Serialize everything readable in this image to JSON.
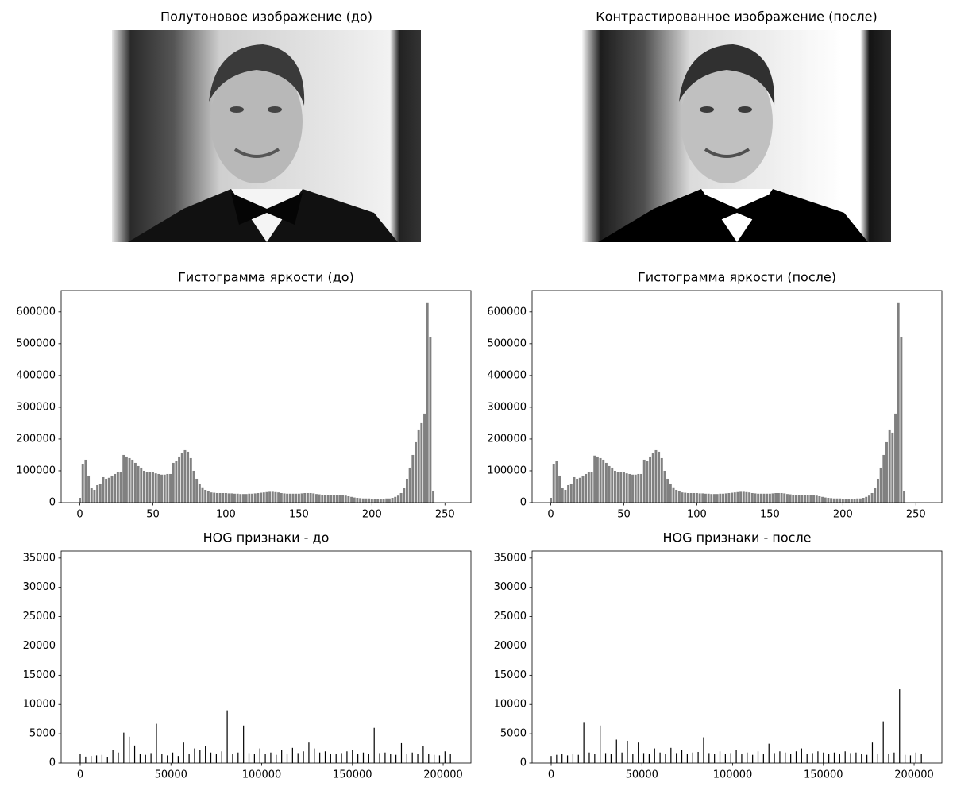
{
  "chart_data": [
    {
      "type": "image",
      "title": "Полутоновое изображение (до)"
    },
    {
      "type": "image",
      "title": "Контрастированное изображение (после)"
    },
    {
      "type": "bar",
      "title": "Гистограмма яркости (до)",
      "color": "#808080",
      "x": [
        0,
        2,
        4,
        6,
        8,
        10,
        12,
        14,
        16,
        18,
        20,
        22,
        24,
        26,
        28,
        30,
        32,
        34,
        36,
        38,
        40,
        42,
        44,
        46,
        48,
        50,
        52,
        54,
        56,
        58,
        60,
        62,
        64,
        66,
        68,
        70,
        72,
        74,
        76,
        78,
        80,
        82,
        84,
        86,
        88,
        90,
        92,
        94,
        96,
        98,
        100,
        102,
        104,
        106,
        108,
        110,
        112,
        114,
        116,
        118,
        120,
        122,
        124,
        126,
        128,
        130,
        132,
        134,
        136,
        138,
        140,
        142,
        144,
        146,
        148,
        150,
        152,
        154,
        156,
        158,
        160,
        162,
        164,
        166,
        168,
        170,
        172,
        174,
        176,
        178,
        180,
        182,
        184,
        186,
        188,
        190,
        192,
        194,
        196,
        198,
        200,
        202,
        204,
        206,
        208,
        210,
        212,
        214,
        216,
        218,
        220,
        222,
        224,
        226,
        228,
        230,
        232,
        234,
        236,
        238,
        240,
        242
      ],
      "values": [
        15000,
        120000,
        135000,
        85000,
        45000,
        40000,
        55000,
        60000,
        80000,
        75000,
        78000,
        85000,
        90000,
        95000,
        95000,
        150000,
        145000,
        140000,
        135000,
        125000,
        115000,
        110000,
        100000,
        95000,
        95000,
        95000,
        92000,
        90000,
        88000,
        88000,
        90000,
        90000,
        125000,
        130000,
        145000,
        155000,
        165000,
        160000,
        140000,
        100000,
        75000,
        60000,
        48000,
        40000,
        35000,
        32000,
        31000,
        30000,
        30000,
        30000,
        30000,
        29000,
        29000,
        28000,
        28000,
        27000,
        27000,
        27000,
        28000,
        28000,
        29000,
        30000,
        31000,
        32000,
        33000,
        34000,
        34000,
        33000,
        32000,
        30000,
        29000,
        28000,
        28000,
        28000,
        28000,
        28000,
        29000,
        30000,
        30000,
        30000,
        29000,
        27000,
        26000,
        25000,
        24000,
        24000,
        24000,
        23000,
        23000,
        24000,
        23000,
        22000,
        20000,
        18000,
        16000,
        15000,
        14000,
        13000,
        13000,
        13000,
        12000,
        12000,
        12000,
        12000,
        12000,
        13000,
        13000,
        15000,
        18000,
        22000,
        30000,
        45000,
        75000,
        110000,
        150000,
        190000,
        230000,
        250000,
        280000,
        630000,
        520000,
        35000
      ],
      "xlim": [
        -12.8,
        267.8
      ],
      "xticks": [
        0,
        50,
        100,
        150,
        200,
        250
      ],
      "ylim": [
        0,
        667000
      ],
      "yticks": [
        0,
        100000,
        200000,
        300000,
        400000,
        500000,
        600000
      ]
    },
    {
      "type": "bar",
      "title": "Гистограмма яркости (после)",
      "color": "#808080",
      "x": [
        0,
        2,
        4,
        6,
        8,
        10,
        12,
        14,
        16,
        18,
        20,
        22,
        24,
        26,
        28,
        30,
        32,
        34,
        36,
        38,
        40,
        42,
        44,
        46,
        48,
        50,
        52,
        54,
        56,
        58,
        60,
        62,
        64,
        66,
        68,
        70,
        72,
        74,
        76,
        78,
        80,
        82,
        84,
        86,
        88,
        90,
        92,
        94,
        96,
        98,
        100,
        102,
        104,
        106,
        108,
        110,
        112,
        114,
        116,
        118,
        120,
        122,
        124,
        126,
        128,
        130,
        132,
        134,
        136,
        138,
        140,
        142,
        144,
        146,
        148,
        150,
        152,
        154,
        156,
        158,
        160,
        162,
        164,
        166,
        168,
        170,
        172,
        174,
        176,
        178,
        180,
        182,
        184,
        186,
        188,
        190,
        192,
        194,
        196,
        198,
        200,
        202,
        204,
        206,
        208,
        210,
        212,
        214,
        216,
        218,
        220,
        222,
        224,
        226,
        228,
        230,
        232,
        234,
        236,
        238,
        240,
        242
      ],
      "values": [
        15000,
        120000,
        130000,
        85000,
        45000,
        40000,
        55000,
        60000,
        80000,
        75000,
        78000,
        85000,
        90000,
        95000,
        95000,
        148000,
        145000,
        140000,
        135000,
        125000,
        115000,
        110000,
        100000,
        95000,
        95000,
        95000,
        92000,
        90000,
        88000,
        88000,
        90000,
        90000,
        135000,
        130000,
        145000,
        155000,
        165000,
        160000,
        140000,
        100000,
        75000,
        60000,
        48000,
        40000,
        35000,
        32000,
        31000,
        30000,
        30000,
        30000,
        30000,
        29000,
        29000,
        28000,
        28000,
        27000,
        27000,
        27000,
        28000,
        28000,
        29000,
        30000,
        31000,
        32000,
        33000,
        34000,
        34000,
        33000,
        32000,
        30000,
        29000,
        28000,
        28000,
        28000,
        28000,
        28000,
        29000,
        30000,
        30000,
        30000,
        29000,
        27000,
        26000,
        25000,
        24000,
        24000,
        24000,
        23000,
        23000,
        24000,
        23000,
        22000,
        20000,
        18000,
        16000,
        15000,
        14000,
        13000,
        13000,
        13000,
        12000,
        12000,
        12000,
        12000,
        12000,
        13000,
        13000,
        15000,
        18000,
        22000,
        30000,
        45000,
        75000,
        110000,
        150000,
        190000,
        230000,
        220000,
        280000,
        630000,
        520000,
        35000
      ],
      "xlim": [
        -12.8,
        267.8
      ],
      "xticks": [
        0,
        50,
        100,
        150,
        200,
        250
      ],
      "ylim": [
        0,
        667000
      ],
      "yticks": [
        0,
        100000,
        200000,
        300000,
        400000,
        500000,
        600000
      ]
    },
    {
      "type": "bar",
      "title": "HOG признаки - до",
      "color": "#000000",
      "x": [
        0,
        3000,
        6000,
        9000,
        12000,
        15000,
        18000,
        21000,
        24000,
        27000,
        30000,
        33000,
        36000,
        39000,
        42000,
        45000,
        48000,
        51000,
        54000,
        57000,
        60000,
        63000,
        66000,
        69000,
        72000,
        75000,
        78000,
        81000,
        84000,
        87000,
        90000,
        93000,
        96000,
        99000,
        102000,
        105000,
        108000,
        111000,
        114000,
        117000,
        120000,
        123000,
        126000,
        129000,
        132000,
        135000,
        138000,
        141000,
        144000,
        147000,
        150000,
        153000,
        156000,
        159000,
        162000,
        165000,
        168000,
        171000,
        174000,
        177000,
        180000,
        183000,
        186000,
        189000,
        192000,
        195000,
        198000,
        201000,
        204000
      ],
      "values": [
        1500,
        1100,
        1200,
        1300,
        1400,
        1000,
        2200,
        1800,
        5200,
        4500,
        3000,
        1500,
        1400,
        1700,
        6700,
        1500,
        1300,
        1800,
        1200,
        3500,
        1600,
        2500,
        2200,
        2900,
        1800,
        1500,
        2000,
        9000,
        1600,
        1800,
        6400,
        1700,
        1500,
        2500,
        1600,
        1800,
        1400,
        2200,
        1500,
        2600,
        1700,
        2000,
        3500,
        2500,
        1800,
        2000,
        1600,
        1500,
        1700,
        2000,
        2200,
        1600,
        1800,
        1500,
        6000,
        1700,
        1800,
        1500,
        1400,
        3400,
        1600,
        1800,
        1500,
        2900,
        1600,
        1400,
        1300,
        2000,
        1500
      ],
      "xlim": [
        -10500,
        215300
      ],
      "xticks": [
        0,
        50000,
        100000,
        150000,
        200000
      ],
      "ylim": [
        0,
        36200
      ],
      "yticks": [
        0,
        5000,
        10000,
        15000,
        20000,
        25000,
        30000,
        35000
      ]
    },
    {
      "type": "bar",
      "title": "HOG признаки - после",
      "color": "#000000",
      "x": [
        0,
        3000,
        6000,
        9000,
        12000,
        15000,
        18000,
        21000,
        24000,
        27000,
        30000,
        33000,
        36000,
        39000,
        42000,
        45000,
        48000,
        51000,
        54000,
        57000,
        60000,
        63000,
        66000,
        69000,
        72000,
        75000,
        78000,
        81000,
        84000,
        87000,
        90000,
        93000,
        96000,
        99000,
        102000,
        105000,
        108000,
        111000,
        114000,
        117000,
        120000,
        123000,
        126000,
        129000,
        132000,
        135000,
        138000,
        141000,
        144000,
        147000,
        150000,
        153000,
        156000,
        159000,
        162000,
        165000,
        168000,
        171000,
        174000,
        177000,
        180000,
        183000,
        186000,
        189000,
        192000,
        195000,
        198000,
        201000,
        204000
      ],
      "values": [
        1200,
        1400,
        1500,
        1300,
        1600,
        1400,
        7000,
        1800,
        1500,
        6400,
        1700,
        1600,
        4000,
        1800,
        3800,
        1500,
        3500,
        1700,
        1600,
        2500,
        1800,
        1500,
        2600,
        1700,
        2200,
        1600,
        1800,
        1900,
        4400,
        1700,
        1600,
        2000,
        1500,
        1700,
        2200,
        1600,
        1800,
        1400,
        2000,
        1500,
        3300,
        1700,
        2000,
        1800,
        1600,
        2000,
        2500,
        1500,
        1700,
        2000,
        1800,
        1600,
        1800,
        1500,
        2000,
        1700,
        1800,
        1500,
        1400,
        3500,
        1600,
        7100,
        1500,
        1800,
        12600,
        1400,
        1300,
        1800,
        1500
      ],
      "xlim": [
        -10500,
        215300
      ],
      "xticks": [
        0,
        50000,
        100000,
        150000,
        200000
      ],
      "ylim": [
        0,
        36200
      ],
      "yticks": [
        0,
        5000,
        10000,
        15000,
        20000,
        25000,
        30000,
        35000
      ]
    }
  ]
}
